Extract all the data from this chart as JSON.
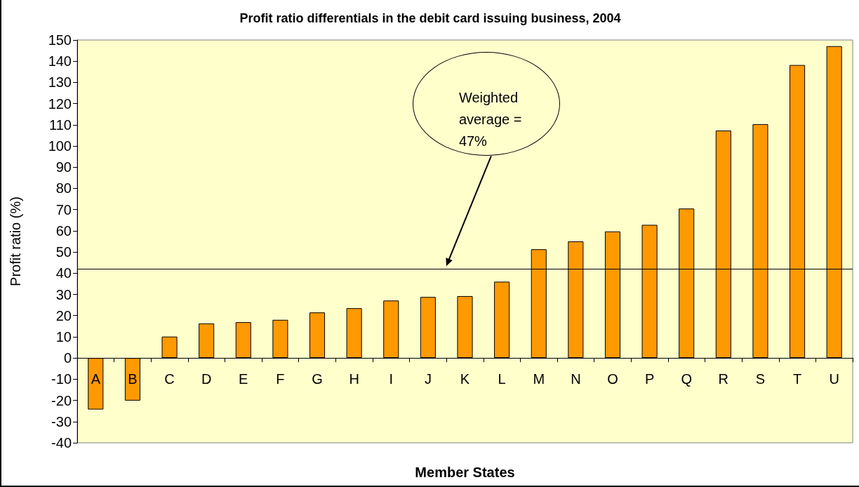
{
  "chart_data": {
    "type": "bar",
    "title": "Profit ratio differentials in the debit card issuing business, 2004",
    "xlabel": "Member States",
    "ylabel": "Profit ratio (%)",
    "categories": [
      "A",
      "B",
      "C",
      "D",
      "E",
      "F",
      "G",
      "H",
      "I",
      "J",
      "K",
      "L",
      "M",
      "N",
      "O",
      "P",
      "Q",
      "R",
      "S",
      "T",
      "U"
    ],
    "values": [
      -24.3,
      -20.1,
      10.1,
      16.3,
      16.9,
      18.0,
      21.5,
      23.5,
      27.1,
      28.8,
      29.2,
      36.0,
      51.3,
      55.0,
      59.7,
      62.8,
      70.5,
      107.3,
      110.3,
      138.2,
      147.1
    ],
    "color": "#ff9900",
    "ylim": [
      -40,
      150
    ],
    "yticks": [
      -40,
      -30,
      -20,
      -10,
      0,
      10,
      20,
      30,
      40,
      50,
      60,
      70,
      80,
      90,
      100,
      110,
      120,
      130,
      140,
      150
    ],
    "ref_lines": [
      {
        "axis": "y",
        "value": 42,
        "color": "#000000"
      }
    ],
    "annotations": [
      "Weighted average = 47%"
    ]
  }
}
